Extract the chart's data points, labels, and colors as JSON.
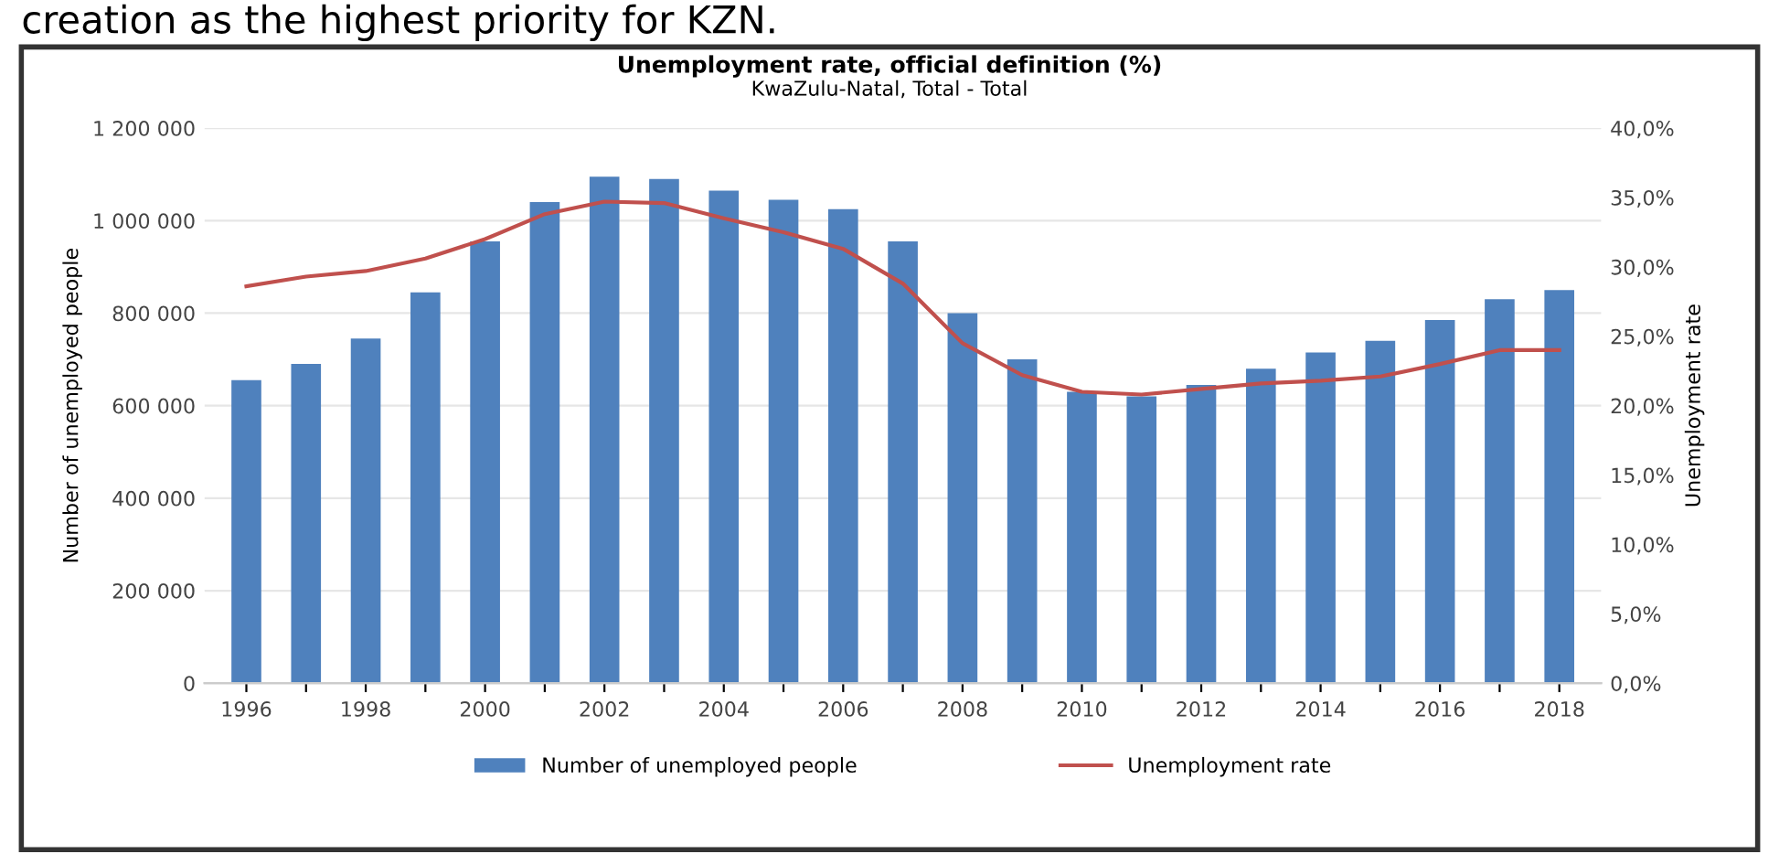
{
  "chart_data": {
    "type": "bar",
    "title": "Unemployment rate, official definition (%)",
    "subtitle": "KwaZulu-Natal, Total - Total",
    "ylabel": "Number of unemployed people",
    "y2label": "Unemployment rate",
    "annotations": [
      "creation as the highest priority for KZN."
    ],
    "categories": [
      "1996",
      null,
      "1998",
      null,
      "2000",
      null,
      "2002",
      null,
      "2004",
      null,
      "2006",
      null,
      "2008",
      null,
      "2010",
      null,
      "2012",
      null,
      "2014",
      null,
      "2016",
      null,
      "2018"
    ],
    "series": [
      {
        "name": "Number of unemployed people",
        "color": "#4f81bd",
        "values": [
          655000,
          690000,
          745000,
          845000,
          955000,
          1040000,
          1095000,
          1090000,
          1065000,
          1045000,
          1025000,
          955000,
          800000,
          700000,
          630000,
          620000,
          645000,
          680000,
          715000,
          740000,
          785000,
          830000,
          850000
        ]
      },
      {
        "name": "Unemployment rate",
        "type": "line",
        "axis": "y2",
        "color": "#c0504d",
        "values": [
          28.6,
          29.3,
          29.7,
          30.6,
          32.0,
          33.8,
          34.7,
          34.6,
          33.5,
          32.5,
          31.3,
          28.8,
          24.5,
          22.2,
          21.0,
          20.8,
          21.2,
          21.6,
          21.8,
          22.1,
          23.0,
          24.0,
          24.0
        ]
      }
    ],
    "ylim": [
      0,
      1200000
    ],
    "yticks": [
      {
        "value": 0,
        "label": "0"
      },
      {
        "value": 200000,
        "label": "200 000"
      },
      {
        "value": 400000,
        "label": "400 000"
      },
      {
        "value": 600000,
        "label": "600 000"
      },
      {
        "value": 800000,
        "label": "800 000"
      },
      {
        "value": 1000000,
        "label": "1 000 000"
      },
      {
        "value": 1200000,
        "label": "1 200 000"
      }
    ],
    "y2lim": [
      0,
      40
    ],
    "y2ticks": [
      {
        "value": 0,
        "label": "0,0%"
      },
      {
        "value": 5,
        "label": "5,0%"
      },
      {
        "value": 10,
        "label": "10,0%"
      },
      {
        "value": 15,
        "label": "15,0%"
      },
      {
        "value": 20,
        "label": "20,0%"
      },
      {
        "value": 25,
        "label": "25,0%"
      },
      {
        "value": 30,
        "label": "30,0%"
      },
      {
        "value": 35,
        "label": "35,0%"
      },
      {
        "value": 40,
        "label": "40,0%"
      }
    ],
    "grid": "y",
    "legend": "bottom",
    "marker": "none",
    "line_style": "solid"
  }
}
